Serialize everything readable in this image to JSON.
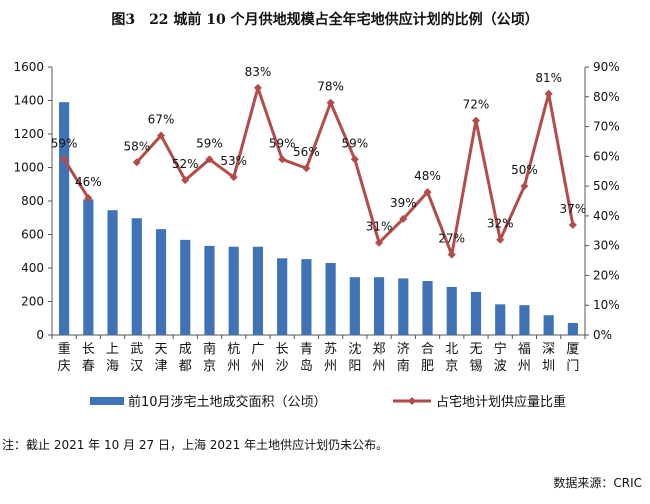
{
  "title": "图3　22 城前 10 个月供地规模占全年宅地供应计划的比例（公顷）",
  "note": "注：截止 2021 年 10 月 27 日，上海 2021 年土地供应计划仍未公布。",
  "source": "数据来源：CRIC",
  "chart_data": {
    "type": "bar",
    "categories": [
      "重庆",
      "长春",
      "上海",
      "武汉",
      "天津",
      "成都",
      "南京",
      "杭州",
      "广州",
      "长沙",
      "青岛",
      "苏州",
      "沈阳",
      "郑州",
      "济南",
      "合肥",
      "北京",
      "无锡",
      "宁波",
      "福州",
      "深圳",
      "厦门"
    ],
    "category_lines": [
      [
        "重",
        "庆"
      ],
      [
        "长",
        "春"
      ],
      [
        "上",
        "海"
      ],
      [
        "武",
        "汉"
      ],
      [
        "天",
        "津"
      ],
      [
        "成",
        "都"
      ],
      [
        "南",
        "京"
      ],
      [
        "杭",
        "州"
      ],
      [
        "广",
        "州"
      ],
      [
        "长",
        "沙"
      ],
      [
        "青",
        "岛"
      ],
      [
        "苏",
        "州"
      ],
      [
        "沈",
        "阳"
      ],
      [
        "郑",
        "州"
      ],
      [
        "济",
        "南"
      ],
      [
        "合",
        "肥"
      ],
      [
        "北",
        "京"
      ],
      [
        "无",
        "锡"
      ],
      [
        "宁",
        "波"
      ],
      [
        "福",
        "州"
      ],
      [
        "深",
        "圳"
      ],
      [
        "厦",
        "门"
      ]
    ],
    "series": [
      {
        "name": "前10月涉宅土地成交面积（公顷）",
        "type": "bar",
        "axis": "left",
        "color": "#3f73b6",
        "values": [
          1390,
          810,
          745,
          697,
          632,
          568,
          532,
          527,
          527,
          458,
          453,
          430,
          345,
          345,
          338,
          322,
          287,
          257,
          183,
          178,
          118,
          72
        ]
      },
      {
        "name": "占宅地计划供应量比重",
        "type": "line",
        "axis": "right",
        "color": "#b34b48",
        "values": [
          59,
          46,
          null,
          58,
          67,
          52,
          59,
          53,
          83,
          59,
          56,
          78,
          59,
          31,
          39,
          48,
          27,
          72,
          32,
          50,
          81,
          37
        ],
        "labels": [
          "59%",
          "46%",
          "",
          "58%",
          "67%",
          "52%",
          "59%",
          "53%",
          "83%",
          "59%",
          "56%",
          "78%",
          "59%",
          "31%",
          "39%",
          "48%",
          "27%",
          "72%",
          "32%",
          "50%",
          "81%",
          "37%"
        ]
      }
    ],
    "y_left": {
      "min": 0,
      "max": 1600,
      "step": 200,
      "tick_labels": [
        "0",
        "200",
        "400",
        "600",
        "800",
        "1000",
        "1200",
        "1400",
        "1600"
      ]
    },
    "y_right": {
      "min": 0,
      "max": 90,
      "step": 10,
      "tick_labels": [
        "0%",
        "10%",
        "20%",
        "30%",
        "40%",
        "50%",
        "60%",
        "70%",
        "80%",
        "90%"
      ]
    },
    "grid": false,
    "legend": "bottom"
  }
}
